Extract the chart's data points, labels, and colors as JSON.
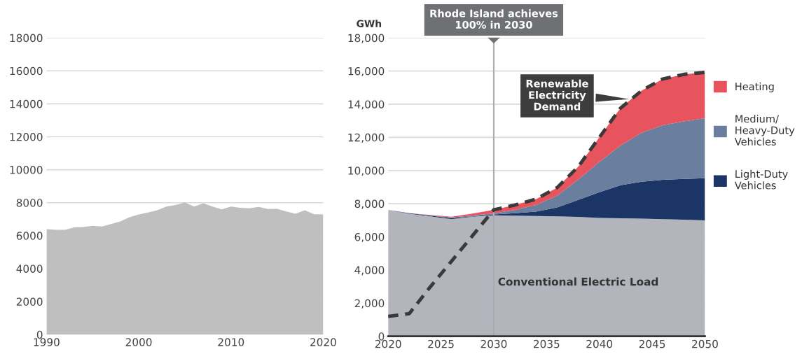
{
  "chart_data": [
    {
      "type": "area",
      "x": [
        1990,
        1991,
        1992,
        1993,
        1994,
        1995,
        1996,
        1997,
        1998,
        1999,
        2000,
        2001,
        2002,
        2003,
        2004,
        2005,
        2006,
        2007,
        2008,
        2009,
        2010,
        2011,
        2012,
        2013,
        2014,
        2015,
        2016,
        2017,
        2018,
        2019,
        2020
      ],
      "series": [
        {
          "color": "#bfbfbf",
          "values": [
            6400,
            6350,
            6350,
            6500,
            6520,
            6600,
            6550,
            6700,
            6860,
            7120,
            7290,
            7400,
            7540,
            7760,
            7860,
            8010,
            7760,
            7970,
            7760,
            7590,
            7770,
            7690,
            7660,
            7740,
            7620,
            7630,
            7470,
            7330,
            7540,
            7300,
            7290
          ]
        }
      ],
      "xlim": [
        1990,
        2020
      ],
      "xticks": [
        1990,
        2000,
        2010,
        2020
      ],
      "ylim": [
        0,
        18000
      ],
      "yticks": [
        0,
        2000,
        4000,
        6000,
        8000,
        10000,
        12000,
        14000,
        16000,
        18000
      ],
      "grid": "y"
    },
    {
      "type": "area",
      "stacked": true,
      "ylabel": "GWh",
      "x": [
        2020,
        2022,
        2024,
        2026,
        2028,
        2030,
        2032,
        2034,
        2036,
        2038,
        2040,
        2042,
        2044,
        2046,
        2048,
        2050
      ],
      "series": [
        {
          "color": "#b3b5bd",
          "values": [
            7630,
            7390,
            7240,
            7070,
            7210,
            7300,
            7280,
            7260,
            7230,
            7200,
            7140,
            7120,
            7100,
            7070,
            7030,
            6990
          ]
        },
        {
          "name": "Light-Duty Vehicles",
          "color": "#1a3566",
          "values": [
            0,
            30,
            40,
            60,
            30,
            50,
            140,
            260,
            540,
            1030,
            1550,
            1990,
            2220,
            2370,
            2460,
            2540
          ]
        },
        {
          "name": "Medium/ Heavy-Duty Vehicles",
          "color": "#6a7f9e",
          "values": [
            0,
            0,
            20,
            40,
            50,
            60,
            210,
            400,
            710,
            1230,
            1830,
            2400,
            2960,
            3290,
            3470,
            3620
          ]
        },
        {
          "name": "Heating",
          "color": "#e8545e",
          "values": [
            0,
            10,
            20,
            40,
            110,
            220,
            290,
            350,
            490,
            770,
            1480,
            2250,
            2540,
            2790,
            2840,
            2770
          ]
        },
        {
          "type": "line",
          "line_style": "dashed",
          "color": "#3a3a3a",
          "x": [
            2020,
            2022,
            2024,
            2026,
            2028,
            2030,
            2032,
            2034,
            2036,
            2038,
            2040,
            2042,
            2044,
            2046,
            2048,
            2050
          ],
          "values": [
            1200,
            1370,
            2990,
            4530,
            6080,
            7630,
            7920,
            8270,
            8970,
            10230,
            12000,
            13760,
            14820,
            15520,
            15800,
            15920
          ]
        }
      ],
      "ref_lines": [
        {
          "axis": "x",
          "value": 2030,
          "label": "Rhode Island achieves 100% in 2030",
          "color": "#a9adb3"
        }
      ],
      "annotations": [
        {
          "text": "Renewable Electricity Demand",
          "x": 2043,
          "y": 14300
        },
        "Conventional Electric Load"
      ],
      "xlim": [
        2020,
        2050
      ],
      "xticks": [
        2020,
        2025,
        2030,
        2035,
        2040,
        2045,
        2050
      ],
      "ylim": [
        0,
        18000
      ],
      "yticks": [
        {
          "value": 0,
          "label": "0"
        },
        {
          "value": 2000,
          "label": "2,000"
        },
        {
          "value": 4000,
          "label": "4,000"
        },
        {
          "value": 6000,
          "label": "6,000"
        },
        {
          "value": 8000,
          "label": "8,000"
        },
        {
          "value": 10000,
          "label": "10,000"
        },
        {
          "value": 12000,
          "label": "12,000"
        },
        {
          "value": 14000,
          "label": "14,000"
        },
        {
          "value": 16000,
          "label": "16,000"
        },
        {
          "value": 18000,
          "label": "18,000"
        }
      ],
      "grid": "y",
      "legend": "right"
    }
  ]
}
